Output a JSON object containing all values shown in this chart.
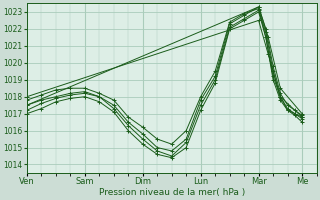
{
  "title": "",
  "xlabel": "Pression niveau de la mer( hPa )",
  "bg_color": "#ccddd5",
  "plot_bg_color": "#ddeee6",
  "grid_color": "#aaccbb",
  "line_color": "#1a5c1a",
  "ylim": [
    1013.5,
    1023.5
  ],
  "xlim": [
    0,
    120
  ],
  "day_labels": [
    "Ven",
    "Sam",
    "Dim",
    "Lun",
    "Mar",
    "Me"
  ],
  "day_positions": [
    0,
    24,
    48,
    72,
    96,
    114
  ],
  "yticks": [
    1014,
    1015,
    1016,
    1017,
    1018,
    1019,
    1020,
    1021,
    1022,
    1023
  ],
  "series": [
    {
      "x": [
        0,
        96,
        100,
        105,
        114
      ],
      "y": [
        1017.5,
        1023.3,
        1021.5,
        1018.5,
        1017.0
      ]
    },
    {
      "x": [
        0,
        96,
        100,
        105,
        114
      ],
      "y": [
        1018.0,
        1022.5,
        1020.5,
        1018.0,
        1016.8
      ]
    },
    {
      "x": [
        0,
        6,
        12,
        18,
        24,
        30,
        36,
        42,
        48,
        54,
        60,
        66,
        72,
        78,
        84,
        90,
        96,
        99,
        102,
        105,
        108,
        111,
        114
      ],
      "y": [
        1017.5,
        1017.8,
        1018.0,
        1018.2,
        1018.3,
        1018.0,
        1017.5,
        1016.5,
        1015.8,
        1015.0,
        1014.8,
        1015.5,
        1017.8,
        1019.2,
        1022.3,
        1022.8,
        1023.3,
        1022.0,
        1019.8,
        1018.2,
        1017.5,
        1017.2,
        1016.9
      ]
    },
    {
      "x": [
        0,
        6,
        12,
        18,
        24,
        30,
        36,
        42,
        48,
        54,
        60,
        66,
        72,
        78,
        84,
        90,
        96,
        99,
        102,
        105,
        108,
        111,
        114
      ],
      "y": [
        1017.2,
        1017.6,
        1017.9,
        1018.1,
        1018.2,
        1018.0,
        1017.3,
        1016.3,
        1015.5,
        1014.8,
        1014.5,
        1015.3,
        1017.5,
        1019.0,
        1022.1,
        1022.6,
        1023.1,
        1021.8,
        1019.5,
        1018.0,
        1017.3,
        1017.0,
        1016.7
      ]
    },
    {
      "x": [
        0,
        6,
        12,
        18,
        24,
        30,
        36,
        42,
        48,
        54,
        60,
        66,
        72,
        78,
        84,
        90,
        96,
        99,
        102,
        105,
        108,
        111,
        114
      ],
      "y": [
        1017.8,
        1018.1,
        1018.4,
        1018.5,
        1018.5,
        1018.2,
        1017.8,
        1016.8,
        1016.2,
        1015.5,
        1015.2,
        1016.0,
        1018.0,
        1019.5,
        1022.4,
        1022.9,
        1023.2,
        1021.5,
        1019.0,
        1017.8,
        1017.2,
        1017.0,
        1016.8
      ]
    },
    {
      "x": [
        0,
        6,
        12,
        18,
        24,
        30,
        36,
        42,
        48,
        54,
        60,
        66,
        72,
        78,
        84,
        90,
        96,
        99,
        102,
        105,
        108,
        111,
        114
      ],
      "y": [
        1017.0,
        1017.3,
        1017.7,
        1017.9,
        1018.0,
        1017.7,
        1017.1,
        1016.0,
        1015.2,
        1014.6,
        1014.4,
        1015.0,
        1017.2,
        1018.8,
        1022.0,
        1022.5,
        1023.0,
        1021.5,
        1019.2,
        1018.0,
        1017.2,
        1016.9,
        1016.5
      ]
    }
  ]
}
